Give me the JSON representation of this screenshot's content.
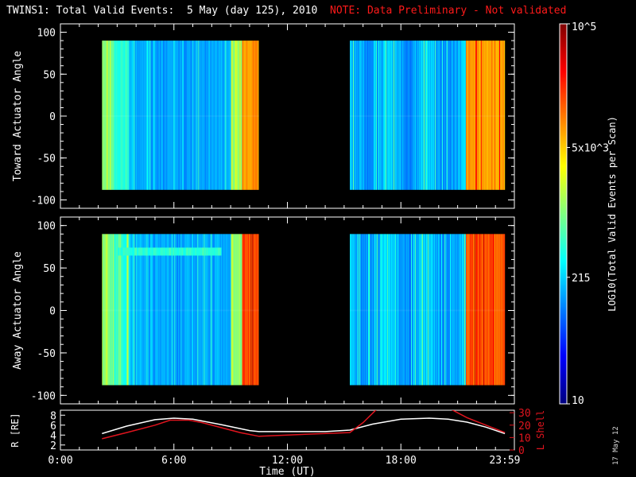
{
  "title": "TWINS1: Total Valid Events:  5 May (day 125), 2010",
  "note": "NOTE: Data Preliminary - Not validated",
  "date_stamp": "17 May 12",
  "colors": {
    "frame": "#ffffff",
    "l_shell": "#e0141e",
    "radius": "#ffffff",
    "note": "#ff1a1a"
  },
  "chart_data": [
    {
      "type": "heatmap",
      "panel": "toward",
      "ylabel": "Toward Actuator Angle",
      "ylim": [
        -110,
        110
      ],
      "yticks": [
        -100,
        -50,
        0,
        50,
        100
      ],
      "x_range_hours": [
        0,
        24
      ],
      "value_scale": "log",
      "data_blocks_hours": [
        [
          2.2,
          10.5
        ],
        [
          15.3,
          23.5
        ]
      ],
      "angle_range": [
        -88,
        90
      ],
      "colorbar": {
        "label": "LOG10(Total Valid Events per Scan)",
        "ticks": [
          "10",
          "215",
          "5x10^3",
          "10^5"
        ],
        "range": [
          10,
          100000
        ]
      }
    },
    {
      "type": "heatmap",
      "panel": "away",
      "ylabel": "Away Actuator Angle",
      "ylim": [
        -110,
        110
      ],
      "yticks": [
        -100,
        -50,
        0,
        50,
        100
      ],
      "x_range_hours": [
        0,
        24
      ],
      "value_scale": "log",
      "data_blocks_hours": [
        [
          2.2,
          10.5
        ],
        [
          15.3,
          23.5
        ]
      ],
      "angle_range": [
        -88,
        90
      ]
    },
    {
      "type": "line",
      "panel": "ephemeris",
      "xlabel": "Time (UT)",
      "xticks": [
        "0:00",
        "6:00",
        "12:00",
        "18:00",
        "23:59"
      ],
      "x_hours": [
        0,
        6,
        12,
        18,
        23.98
      ],
      "ylabel_left": "R [RE]",
      "ylim_left": [
        1,
        9
      ],
      "yticks_left": [
        2,
        4,
        6,
        8
      ],
      "ylabel_right": "L Shell",
      "ylim_right": [
        0,
        32
      ],
      "yticks_right": [
        0,
        10,
        20,
        30
      ],
      "series": [
        {
          "name": "R [RE]",
          "axis": "left",
          "x": [
            2.2,
            3.5,
            5.0,
            6.0,
            7.0,
            8.5,
            10.0,
            10.5,
            12.0,
            14.0,
            15.3,
            16.5,
            18.0,
            19.5,
            20.5,
            21.5,
            22.5,
            23.5
          ],
          "y": [
            4.3,
            5.8,
            7.1,
            7.4,
            7.2,
            6.1,
            4.9,
            4.7,
            4.7,
            4.7,
            5.0,
            6.2,
            7.2,
            7.4,
            7.2,
            6.6,
            5.6,
            4.3
          ]
        },
        {
          "name": "L Shell",
          "axis": "right",
          "x": [
            2.2,
            3.5,
            5.0,
            5.8,
            6.8,
            7.5,
            8.5,
            9.5,
            10.5,
            12.0,
            13.5,
            15.3,
            16.0,
            16.8,
            20.5,
            21.5,
            22.5,
            23.5
          ],
          "y": [
            9,
            14,
            20,
            24,
            24,
            22,
            18,
            14,
            11,
            12,
            13,
            14,
            22,
            34,
            34,
            26,
            20,
            14
          ]
        }
      ]
    }
  ]
}
